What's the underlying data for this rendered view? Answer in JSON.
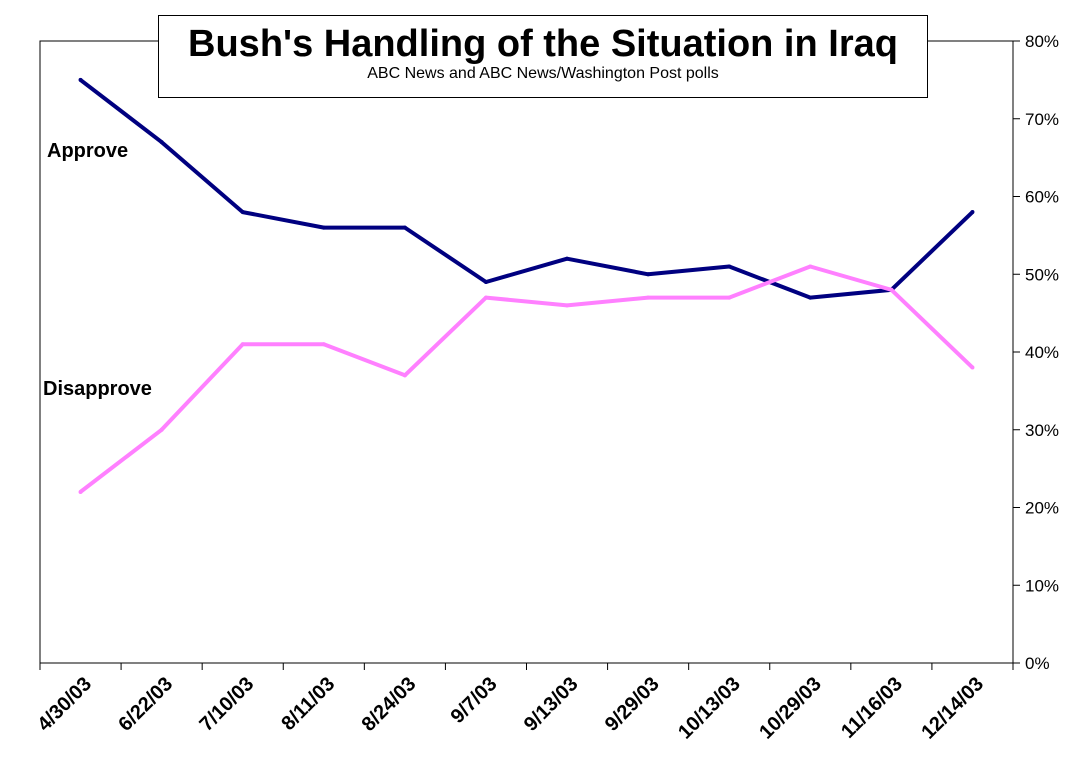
{
  "chart_data": {
    "type": "line",
    "title": "Bush's Handling of the Situation in Iraq",
    "subtitle": "ABC News and ABC News/Washington Post polls",
    "categories": [
      "4/30/03",
      "6/22/03",
      "7/10/03",
      "8/11/03",
      "8/24/03",
      "9/7/03",
      "9/13/03",
      "9/29/03",
      "10/13/03",
      "10/29/03",
      "11/16/03",
      "12/14/03"
    ],
    "series": [
      {
        "name": "Approve",
        "color": "#000080",
        "values": [
          75,
          67,
          58,
          56,
          56,
          49,
          52,
          50,
          51,
          47,
          48,
          58
        ]
      },
      {
        "name": "Disapprove",
        "color": "#FF80FF",
        "values": [
          22,
          30,
          41,
          41,
          37,
          47,
          46,
          47,
          47,
          51,
          48,
          38
        ]
      }
    ],
    "ylim": [
      0,
      80
    ],
    "yticks": [
      "0%",
      "10%",
      "20%",
      "30%",
      "40%",
      "50%",
      "60%",
      "70%",
      "80%"
    ],
    "yaxis_side": "right",
    "grid": false
  }
}
